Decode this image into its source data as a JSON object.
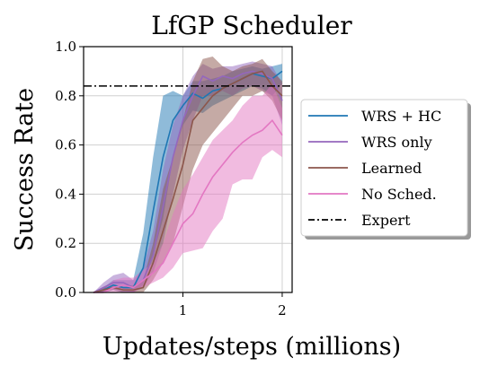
{
  "chart_data": {
    "type": "line",
    "title": "LfGP Scheduler",
    "xlabel": "Updates/steps (millions)",
    "ylabel": "Success Rate",
    "xlim": [
      0.0,
      2.1
    ],
    "ylim": [
      0.0,
      1.0
    ],
    "xticks": [
      1,
      2
    ],
    "xtick_labels": [
      "1",
      "2"
    ],
    "yticks": [
      0.0,
      0.2,
      0.4,
      0.6,
      0.8,
      1.0
    ],
    "ytick_labels": [
      "0.0",
      "0.2",
      "0.4",
      "0.6",
      "0.8",
      "1.0"
    ],
    "grid": true,
    "legend_position": "right-outside",
    "expert": {
      "name": "Expert",
      "value": 0.84,
      "style": "dash-dot",
      "color": "#000000"
    },
    "x": [
      0.1,
      0.2,
      0.3,
      0.4,
      0.5,
      0.6,
      0.7,
      0.8,
      0.9,
      1.0,
      1.1,
      1.2,
      1.3,
      1.4,
      1.5,
      1.6,
      1.7,
      1.8,
      1.9,
      2.0
    ],
    "series": [
      {
        "name": "WRS + HC",
        "color": "#1f77b4",
        "values": [
          0.0,
          0.01,
          0.03,
          0.02,
          0.02,
          0.1,
          0.33,
          0.55,
          0.7,
          0.76,
          0.81,
          0.79,
          0.82,
          0.83,
          0.85,
          0.87,
          0.89,
          0.88,
          0.87,
          0.9
        ],
        "lower": [
          0.0,
          0.0,
          0.01,
          0.0,
          0.0,
          0.03,
          0.15,
          0.3,
          0.55,
          0.68,
          0.74,
          0.73,
          0.76,
          0.78,
          0.8,
          0.82,
          0.84,
          0.83,
          0.8,
          0.85
        ],
        "upper": [
          0.0,
          0.02,
          0.05,
          0.05,
          0.05,
          0.24,
          0.55,
          0.8,
          0.82,
          0.8,
          0.86,
          0.86,
          0.87,
          0.88,
          0.9,
          0.91,
          0.92,
          0.91,
          0.92,
          0.93
        ]
      },
      {
        "name": "WRS only",
        "color": "#9467bd",
        "values": [
          0.0,
          0.02,
          0.04,
          0.04,
          0.02,
          0.05,
          0.15,
          0.35,
          0.55,
          0.7,
          0.8,
          0.88,
          0.86,
          0.88,
          0.87,
          0.89,
          0.9,
          0.89,
          0.87,
          0.78
        ],
        "lower": [
          0.0,
          0.0,
          0.02,
          0.01,
          0.0,
          0.02,
          0.08,
          0.2,
          0.4,
          0.58,
          0.7,
          0.8,
          0.8,
          0.82,
          0.8,
          0.83,
          0.84,
          0.82,
          0.8,
          0.68
        ],
        "upper": [
          0.0,
          0.04,
          0.07,
          0.08,
          0.05,
          0.1,
          0.25,
          0.5,
          0.68,
          0.8,
          0.88,
          0.93,
          0.91,
          0.92,
          0.92,
          0.93,
          0.94,
          0.93,
          0.92,
          0.85
        ]
      },
      {
        "name": "Learned",
        "color": "#8c564b",
        "values": [
          0.0,
          0.01,
          0.02,
          0.01,
          0.01,
          0.02,
          0.12,
          0.25,
          0.38,
          0.52,
          0.7,
          0.75,
          0.8,
          0.83,
          0.85,
          0.87,
          0.89,
          0.9,
          0.84,
          0.8
        ],
        "lower": [
          0.0,
          0.0,
          0.01,
          0.0,
          0.0,
          0.0,
          0.05,
          0.12,
          0.2,
          0.35,
          0.5,
          0.6,
          0.65,
          0.7,
          0.75,
          0.8,
          0.8,
          0.82,
          0.78,
          0.7
        ],
        "upper": [
          0.0,
          0.02,
          0.03,
          0.02,
          0.03,
          0.05,
          0.2,
          0.42,
          0.55,
          0.7,
          0.86,
          0.95,
          0.96,
          0.92,
          0.9,
          0.92,
          0.93,
          0.95,
          0.9,
          0.86
        ]
      },
      {
        "name": "No Sched.",
        "color": "#e377c2",
        "values": [
          0.0,
          0.0,
          0.02,
          0.03,
          0.02,
          0.05,
          0.08,
          0.12,
          0.2,
          0.28,
          0.32,
          0.4,
          0.47,
          0.52,
          0.57,
          0.61,
          0.64,
          0.66,
          0.7,
          0.64
        ],
        "lower": [
          0.0,
          0.0,
          0.0,
          0.0,
          0.0,
          0.02,
          0.04,
          0.06,
          0.1,
          0.16,
          0.17,
          0.18,
          0.25,
          0.3,
          0.44,
          0.46,
          0.46,
          0.55,
          0.58,
          0.55
        ],
        "upper": [
          0.0,
          0.01,
          0.05,
          0.06,
          0.06,
          0.09,
          0.12,
          0.2,
          0.32,
          0.42,
          0.48,
          0.55,
          0.62,
          0.66,
          0.7,
          0.76,
          0.8,
          0.8,
          0.85,
          0.75
        ]
      }
    ]
  }
}
